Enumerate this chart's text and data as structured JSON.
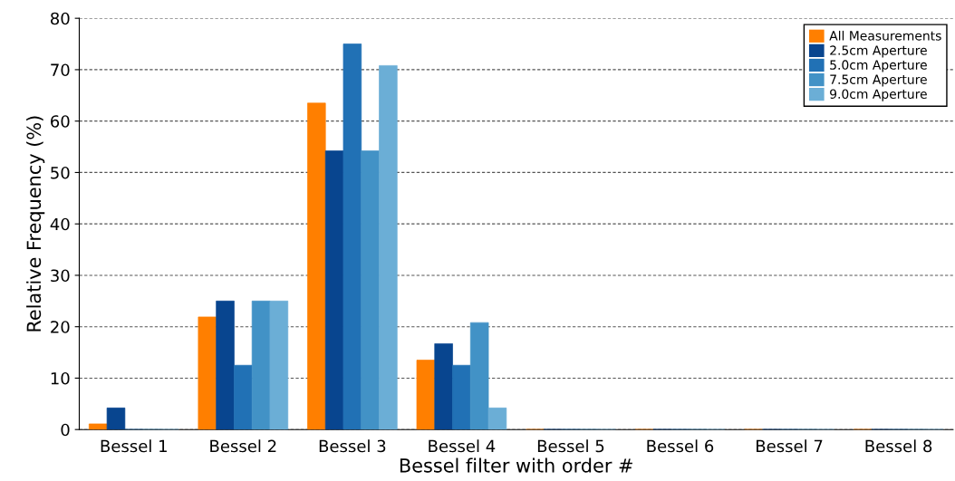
{
  "chart_data": {
    "type": "bar",
    "xlabel": "Bessel filter with order #",
    "ylabel": "Relative Frequency (%)",
    "categories": [
      "Bessel 1",
      "Bessel 2",
      "Bessel 3",
      "Bessel 4",
      "Bessel 5",
      "Bessel 6",
      "Bessel 7",
      "Bessel 8"
    ],
    "series": [
      {
        "name": "All Measurements",
        "color": "#ff7f00",
        "values": [
          1.1,
          21.9,
          63.5,
          13.5,
          0,
          0,
          0,
          0
        ]
      },
      {
        "name": "2.5cm Aperture",
        "color": "#08458f",
        "values": [
          4.2,
          25,
          54.2,
          16.7,
          0,
          0,
          0,
          0
        ]
      },
      {
        "name": "5.0cm Aperture",
        "color": "#2171b5",
        "values": [
          0,
          12.5,
          75,
          12.5,
          0,
          0,
          0,
          0
        ]
      },
      {
        "name": "7.5cm Aperture",
        "color": "#4292c6",
        "values": [
          0,
          25,
          54.2,
          20.8,
          0,
          0,
          0,
          0
        ]
      },
      {
        "name": "9.0cm Aperture",
        "color": "#6baed6",
        "values": [
          0,
          25,
          70.8,
          4.2,
          0,
          0,
          0,
          0
        ]
      }
    ],
    "ylim": [
      0,
      80
    ],
    "yticks": [
      0,
      10,
      20,
      30,
      40,
      50,
      60,
      70,
      80
    ],
    "grid": "y",
    "legend": "top right"
  }
}
